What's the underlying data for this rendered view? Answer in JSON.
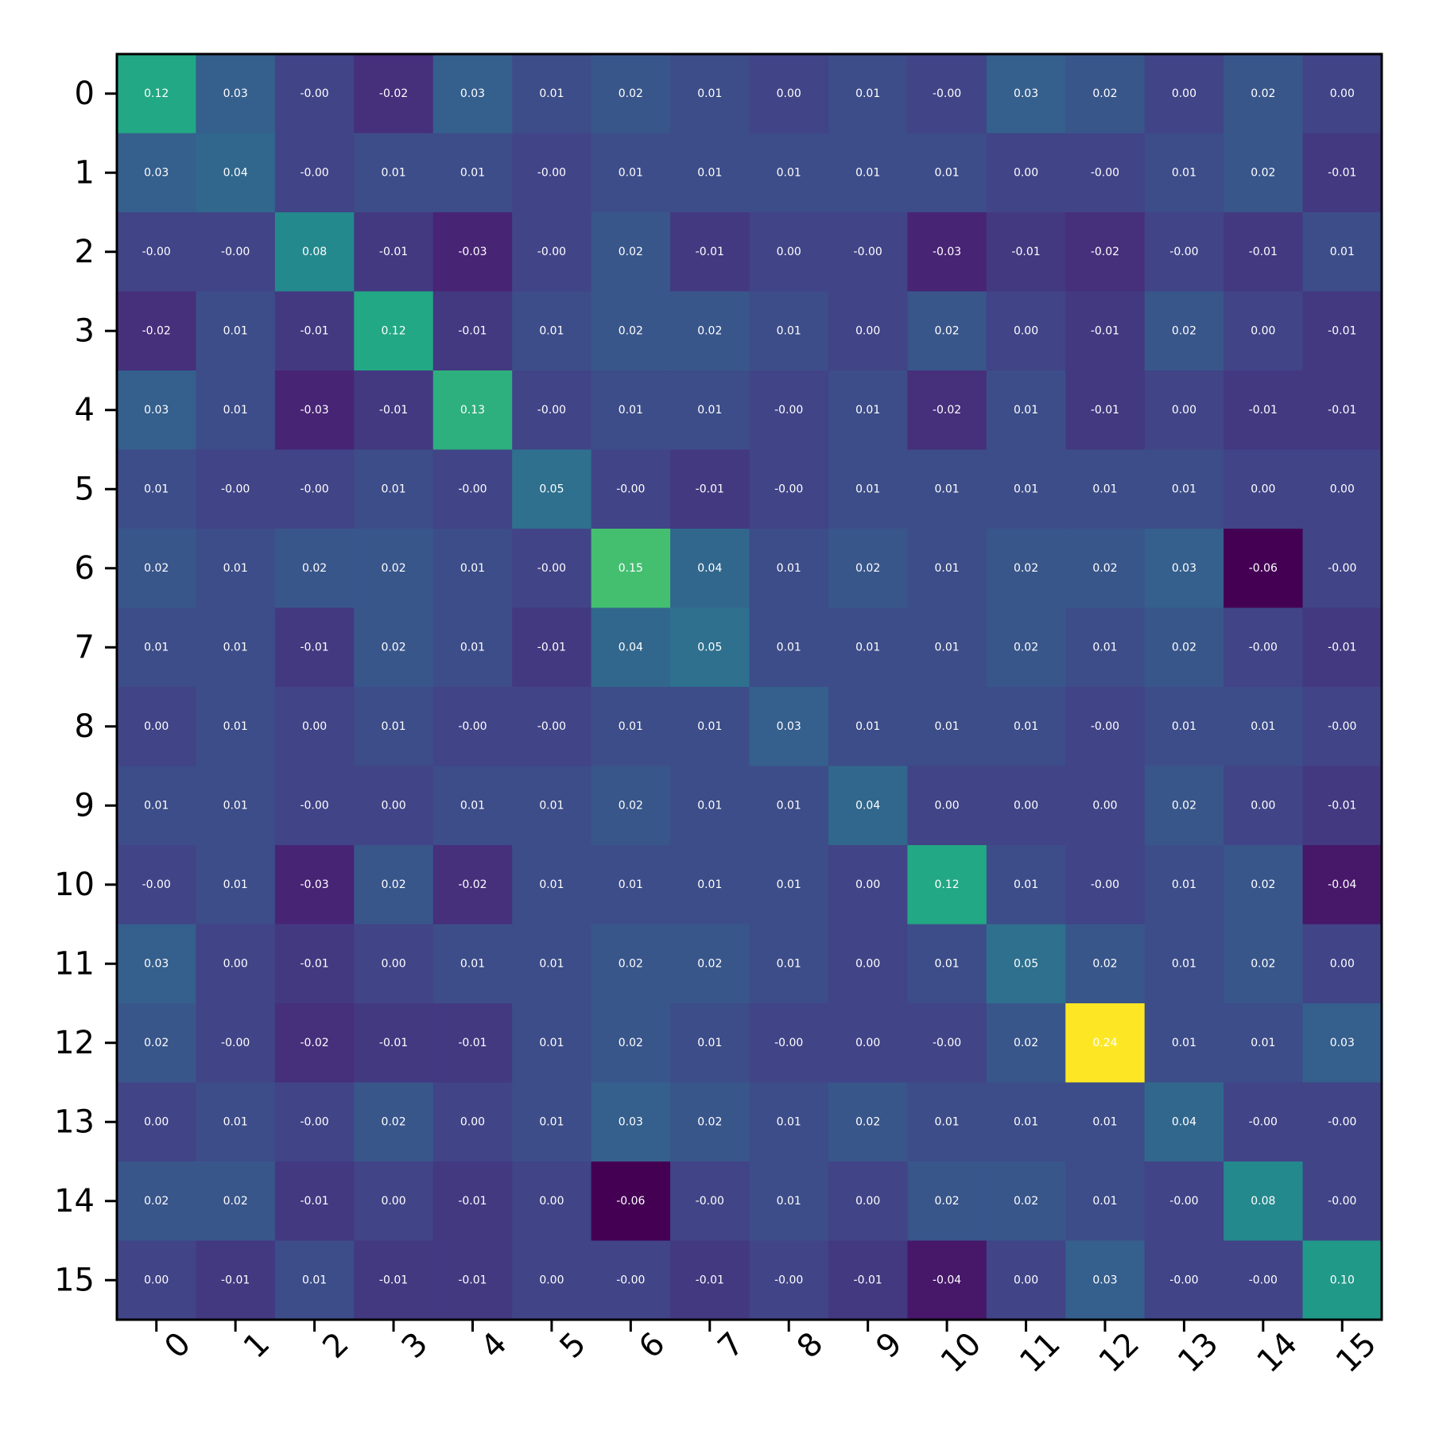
{
  "chart_data": {
    "type": "heatmap",
    "title": "",
    "xlabel": "",
    "ylabel": "",
    "x_categories": [
      "0",
      "1",
      "2",
      "3",
      "4",
      "5",
      "6",
      "7",
      "8",
      "9",
      "10",
      "11",
      "12",
      "13",
      "14",
      "15"
    ],
    "y_categories": [
      "0",
      "1",
      "2",
      "3",
      "4",
      "5",
      "6",
      "7",
      "8",
      "9",
      "10",
      "11",
      "12",
      "13",
      "14",
      "15"
    ],
    "colormap": "viridis",
    "color_range": [
      -0.06,
      0.24
    ],
    "x_tick_rotation_deg": -45,
    "grid": false,
    "legend": "none",
    "values": [
      [
        0.12,
        0.03,
        -0.0,
        -0.02,
        0.03,
        0.01,
        0.02,
        0.01,
        0.0,
        0.01,
        -0.0,
        0.03,
        0.02,
        0.0,
        0.02,
        0.0
      ],
      [
        0.03,
        0.04,
        -0.0,
        0.01,
        0.01,
        -0.0,
        0.01,
        0.01,
        0.01,
        0.01,
        0.01,
        0.0,
        -0.0,
        0.01,
        0.02,
        -0.01
      ],
      [
        -0.0,
        -0.0,
        0.08,
        -0.01,
        -0.03,
        -0.0,
        0.02,
        -0.01,
        0.0,
        -0.0,
        -0.03,
        -0.01,
        -0.02,
        -0.0,
        -0.01,
        0.01
      ],
      [
        -0.02,
        0.01,
        -0.01,
        0.12,
        -0.01,
        0.01,
        0.02,
        0.02,
        0.01,
        0.0,
        0.02,
        0.0,
        -0.01,
        0.02,
        0.0,
        -0.01
      ],
      [
        0.03,
        0.01,
        -0.03,
        -0.01,
        0.13,
        -0.0,
        0.01,
        0.01,
        -0.0,
        0.01,
        -0.02,
        0.01,
        -0.01,
        0.0,
        -0.01,
        -0.01
      ],
      [
        0.01,
        -0.0,
        -0.0,
        0.01,
        -0.0,
        0.05,
        -0.0,
        -0.01,
        -0.0,
        0.01,
        0.01,
        0.01,
        0.01,
        0.01,
        0.0,
        0.0
      ],
      [
        0.02,
        0.01,
        0.02,
        0.02,
        0.01,
        -0.0,
        0.15,
        0.04,
        0.01,
        0.02,
        0.01,
        0.02,
        0.02,
        0.03,
        -0.06,
        -0.0
      ],
      [
        0.01,
        0.01,
        -0.01,
        0.02,
        0.01,
        -0.01,
        0.04,
        0.05,
        0.01,
        0.01,
        0.01,
        0.02,
        0.01,
        0.02,
        -0.0,
        -0.01
      ],
      [
        0.0,
        0.01,
        0.0,
        0.01,
        -0.0,
        -0.0,
        0.01,
        0.01,
        0.03,
        0.01,
        0.01,
        0.01,
        -0.0,
        0.01,
        0.01,
        -0.0
      ],
      [
        0.01,
        0.01,
        -0.0,
        0.0,
        0.01,
        0.01,
        0.02,
        0.01,
        0.01,
        0.04,
        0.0,
        0.0,
        0.0,
        0.02,
        0.0,
        -0.01
      ],
      [
        -0.0,
        0.01,
        -0.03,
        0.02,
        -0.02,
        0.01,
        0.01,
        0.01,
        0.01,
        0.0,
        0.12,
        0.01,
        -0.0,
        0.01,
        0.02,
        -0.04
      ],
      [
        0.03,
        0.0,
        -0.01,
        0.0,
        0.01,
        0.01,
        0.02,
        0.02,
        0.01,
        0.0,
        0.01,
        0.05,
        0.02,
        0.01,
        0.02,
        0.0
      ],
      [
        0.02,
        -0.0,
        -0.02,
        -0.01,
        -0.01,
        0.01,
        0.02,
        0.01,
        -0.0,
        0.0,
        -0.0,
        0.02,
        0.24,
        0.01,
        0.01,
        0.03
      ],
      [
        0.0,
        0.01,
        -0.0,
        0.02,
        0.0,
        0.01,
        0.03,
        0.02,
        0.01,
        0.02,
        0.01,
        0.01,
        0.01,
        0.04,
        -0.0,
        -0.0
      ],
      [
        0.02,
        0.02,
        -0.01,
        0.0,
        -0.01,
        0.0,
        -0.06,
        -0.0,
        0.01,
        0.0,
        0.02,
        0.02,
        0.01,
        -0.0,
        0.08,
        -0.0
      ],
      [
        0.0,
        -0.01,
        0.01,
        -0.01,
        -0.01,
        0.0,
        -0.0,
        -0.01,
        -0.0,
        -0.01,
        -0.04,
        0.0,
        0.03,
        -0.0,
        -0.0,
        0.1
      ]
    ],
    "cell_labels": [
      [
        "0.12",
        "0.03",
        "-0.00",
        "-0.02",
        "0.03",
        "0.01",
        "0.02",
        "0.01",
        "0.00",
        "0.01",
        "-0.00",
        "0.03",
        "0.02",
        "0.00",
        "0.02",
        "0.00"
      ],
      [
        "0.03",
        "0.04",
        "-0.00",
        "0.01",
        "0.01",
        "-0.00",
        "0.01",
        "0.01",
        "0.01",
        "0.01",
        "0.01",
        "0.00",
        "-0.00",
        "0.01",
        "0.02",
        "-0.01"
      ],
      [
        "-0.00",
        "-0.00",
        "0.08",
        "-0.01",
        "-0.03",
        "-0.00",
        "0.02",
        "-0.01",
        "0.00",
        "-0.00",
        "-0.03",
        "-0.01",
        "-0.02",
        "-0.00",
        "-0.01",
        "0.01"
      ],
      [
        "-0.02",
        "0.01",
        "-0.01",
        "0.12",
        "-0.01",
        "0.01",
        "0.02",
        "0.02",
        "0.01",
        "0.00",
        "0.02",
        "0.00",
        "-0.01",
        "0.02",
        "0.00",
        "-0.01"
      ],
      [
        "0.03",
        "0.01",
        "-0.03",
        "-0.01",
        "0.13",
        "-0.00",
        "0.01",
        "0.01",
        "-0.00",
        "0.01",
        "-0.02",
        "0.01",
        "-0.01",
        "0.00",
        "-0.01",
        "-0.01"
      ],
      [
        "0.01",
        "-0.00",
        "-0.00",
        "0.01",
        "-0.00",
        "0.05",
        "-0.00",
        "-0.01",
        "-0.00",
        "0.01",
        "0.01",
        "0.01",
        "0.01",
        "0.01",
        "0.00",
        "0.00"
      ],
      [
        "0.02",
        "0.01",
        "0.02",
        "0.02",
        "0.01",
        "-0.00",
        "0.15",
        "0.04",
        "0.01",
        "0.02",
        "0.01",
        "0.02",
        "0.02",
        "0.03",
        "-0.06",
        "-0.00"
      ],
      [
        "0.01",
        "0.01",
        "-0.01",
        "0.02",
        "0.01",
        "-0.01",
        "0.04",
        "0.05",
        "0.01",
        "0.01",
        "0.01",
        "0.02",
        "0.01",
        "0.02",
        "-0.00",
        "-0.01"
      ],
      [
        "0.00",
        "0.01",
        "0.00",
        "0.01",
        "-0.00",
        "-0.00",
        "0.01",
        "0.01",
        "0.03",
        "0.01",
        "0.01",
        "0.01",
        "-0.00",
        "0.01",
        "0.01",
        "-0.00"
      ],
      [
        "0.01",
        "0.01",
        "-0.00",
        "0.00",
        "0.01",
        "0.01",
        "0.02",
        "0.01",
        "0.01",
        "0.04",
        "0.00",
        "0.00",
        "0.00",
        "0.02",
        "0.00",
        "-0.01"
      ],
      [
        "-0.00",
        "0.01",
        "-0.03",
        "0.02",
        "-0.02",
        "0.01",
        "0.01",
        "0.01",
        "0.01",
        "0.00",
        "0.12",
        "0.01",
        "-0.00",
        "0.01",
        "0.02",
        "-0.04"
      ],
      [
        "0.03",
        "0.00",
        "-0.01",
        "0.00",
        "0.01",
        "0.01",
        "0.02",
        "0.02",
        "0.01",
        "0.00",
        "0.01",
        "0.05",
        "0.02",
        "0.01",
        "0.02",
        "0.00"
      ],
      [
        "0.02",
        "-0.00",
        "-0.02",
        "-0.01",
        "-0.01",
        "0.01",
        "0.02",
        "0.01",
        "-0.00",
        "0.00",
        "-0.00",
        "0.02",
        "0.24",
        "0.01",
        "0.01",
        "0.03"
      ],
      [
        "0.00",
        "0.01",
        "-0.00",
        "0.02",
        "0.00",
        "0.01",
        "0.03",
        "0.02",
        "0.01",
        "0.02",
        "0.01",
        "0.01",
        "0.01",
        "0.04",
        "-0.00",
        "-0.00"
      ],
      [
        "0.02",
        "0.02",
        "-0.01",
        "0.00",
        "-0.01",
        "0.00",
        "-0.06",
        "-0.00",
        "0.01",
        "0.00",
        "0.02",
        "0.02",
        "0.01",
        "-0.00",
        "0.08",
        "-0.00"
      ],
      [
        "0.00",
        "-0.01",
        "0.01",
        "-0.01",
        "-0.01",
        "0.00",
        "-0.00",
        "-0.01",
        "-0.00",
        "-0.01",
        "-0.04",
        "0.00",
        "0.03",
        "-0.00",
        "-0.00",
        "0.10"
      ]
    ]
  }
}
